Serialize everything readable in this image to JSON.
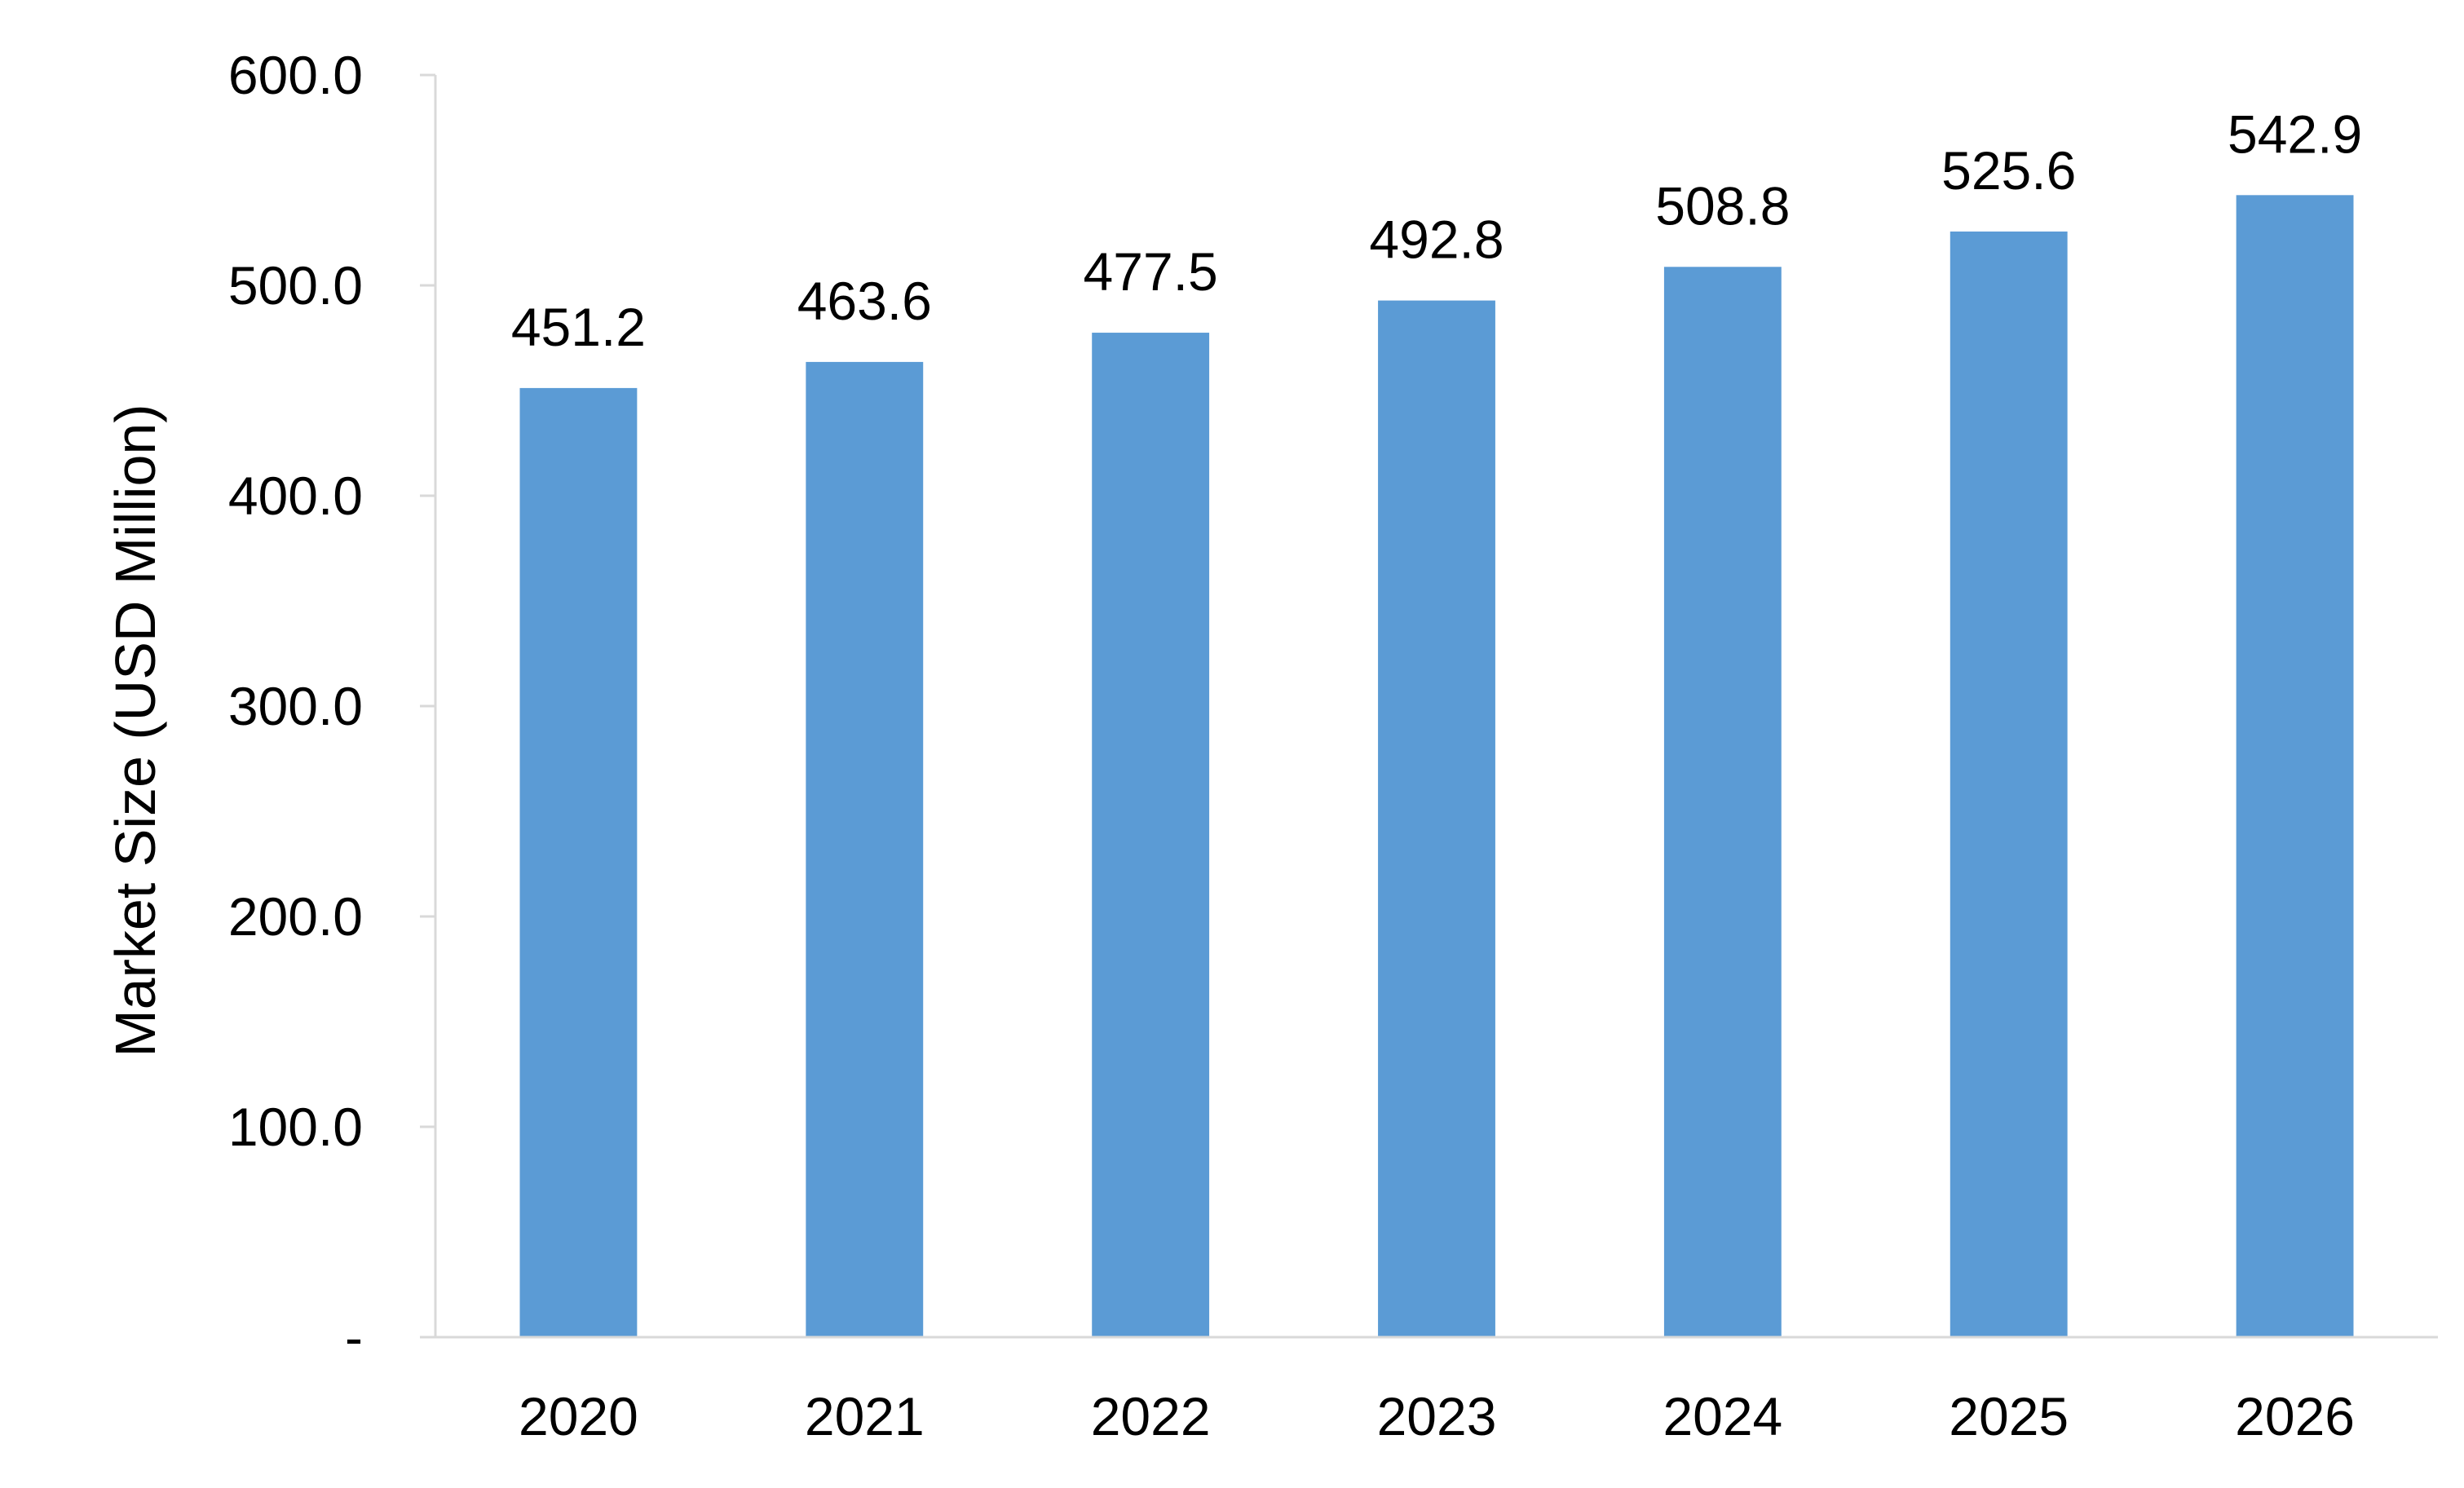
{
  "chart_data": {
    "type": "bar",
    "categories": [
      "2020",
      "2021",
      "2022",
      "2023",
      "2024",
      "2025",
      "2026"
    ],
    "values": [
      451.2,
      463.6,
      477.5,
      492.8,
      508.8,
      525.6,
      542.9
    ],
    "data_labels": [
      "451.2",
      "463.6",
      "477.5",
      "492.8",
      "508.8",
      "525.6",
      "542.9"
    ],
    "title": "",
    "xlabel": "",
    "ylabel": "Market Size (USD Million)",
    "ylim": [
      0,
      600
    ],
    "y_ticks": [
      0,
      100,
      200,
      300,
      400,
      500,
      600
    ],
    "y_tick_labels": [
      "-",
      "100.0",
      "200.0",
      "300.0",
      "400.0",
      "500.0",
      "600.0"
    ],
    "grid": false,
    "legend": "none",
    "bar_color": "#5b9bd5",
    "axis_color": "#d9d9d9"
  }
}
